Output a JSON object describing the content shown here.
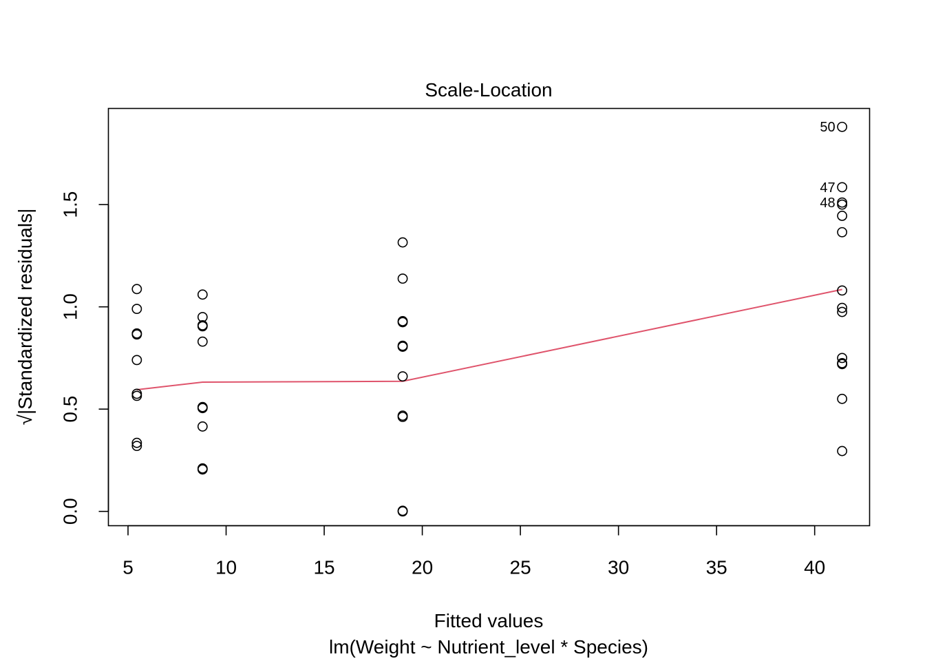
{
  "chart_data": {
    "type": "scatter",
    "title": "Scale-Location",
    "xlabel": "Fitted values",
    "subtitle": "lm(Weight ~ Nutrient_level * Species)",
    "ylabel": "√|Standardized residuals|",
    "xlim": [
      4,
      42.8
    ],
    "ylim": [
      -0.07,
      1.97
    ],
    "x_ticks": [
      5,
      10,
      15,
      20,
      25,
      30,
      35,
      40
    ],
    "x_tick_labels": [
      "5",
      "10",
      "15",
      "20",
      "25",
      "30",
      "35",
      "40"
    ],
    "y_ticks": [
      0,
      0.5,
      1,
      1.5
    ],
    "y_tick_labels": [
      "0.0",
      "0.5",
      "1.0",
      "1.5"
    ],
    "grid": false,
    "points": [
      {
        "x": 5.45,
        "y": 1.087
      },
      {
        "x": 5.45,
        "y": 0.99
      },
      {
        "x": 5.45,
        "y": 0.87
      },
      {
        "x": 5.45,
        "y": 0.865
      },
      {
        "x": 5.45,
        "y": 0.74
      },
      {
        "x": 5.45,
        "y": 0.575
      },
      {
        "x": 5.45,
        "y": 0.565
      },
      {
        "x": 5.45,
        "y": 0.335
      },
      {
        "x": 5.45,
        "y": 0.32
      },
      {
        "x": 8.8,
        "y": 1.06
      },
      {
        "x": 8.8,
        "y": 0.95
      },
      {
        "x": 8.8,
        "y": 0.91
      },
      {
        "x": 8.8,
        "y": 0.905
      },
      {
        "x": 8.8,
        "y": 0.83
      },
      {
        "x": 8.8,
        "y": 0.51
      },
      {
        "x": 8.8,
        "y": 0.505
      },
      {
        "x": 8.8,
        "y": 0.415
      },
      {
        "x": 8.8,
        "y": 0.21
      },
      {
        "x": 8.8,
        "y": 0.205
      },
      {
        "x": 19.0,
        "y": 1.315
      },
      {
        "x": 19.0,
        "y": 1.138
      },
      {
        "x": 19.0,
        "y": 0.93
      },
      {
        "x": 19.0,
        "y": 0.925
      },
      {
        "x": 19.0,
        "y": 0.81
      },
      {
        "x": 19.0,
        "y": 0.805
      },
      {
        "x": 19.0,
        "y": 0.66
      },
      {
        "x": 19.0,
        "y": 0.468
      },
      {
        "x": 19.0,
        "y": 0.462
      },
      {
        "x": 19.0,
        "y": 0.003
      },
      {
        "x": 19.0,
        "y": 0.0
      },
      {
        "x": 41.4,
        "y": 1.88,
        "label": "50"
      },
      {
        "x": 41.4,
        "y": 1.585,
        "label": "47"
      },
      {
        "x": 41.4,
        "y": 1.51,
        "label": "48"
      },
      {
        "x": 41.4,
        "y": 1.5
      },
      {
        "x": 41.4,
        "y": 1.445
      },
      {
        "x": 41.4,
        "y": 1.365
      },
      {
        "x": 41.4,
        "y": 1.08
      },
      {
        "x": 41.4,
        "y": 0.995
      },
      {
        "x": 41.4,
        "y": 0.975
      },
      {
        "x": 41.4,
        "y": 0.75
      },
      {
        "x": 41.4,
        "y": 0.725
      },
      {
        "x": 41.4,
        "y": 0.72
      },
      {
        "x": 41.4,
        "y": 0.55
      },
      {
        "x": 41.4,
        "y": 0.295
      }
    ],
    "smoother": {
      "color": "#DF536B",
      "points": [
        {
          "x": 5.45,
          "y": 0.595
        },
        {
          "x": 8.8,
          "y": 0.632
        },
        {
          "x": 19.0,
          "y": 0.636
        },
        {
          "x": 41.4,
          "y": 1.085
        }
      ]
    }
  }
}
